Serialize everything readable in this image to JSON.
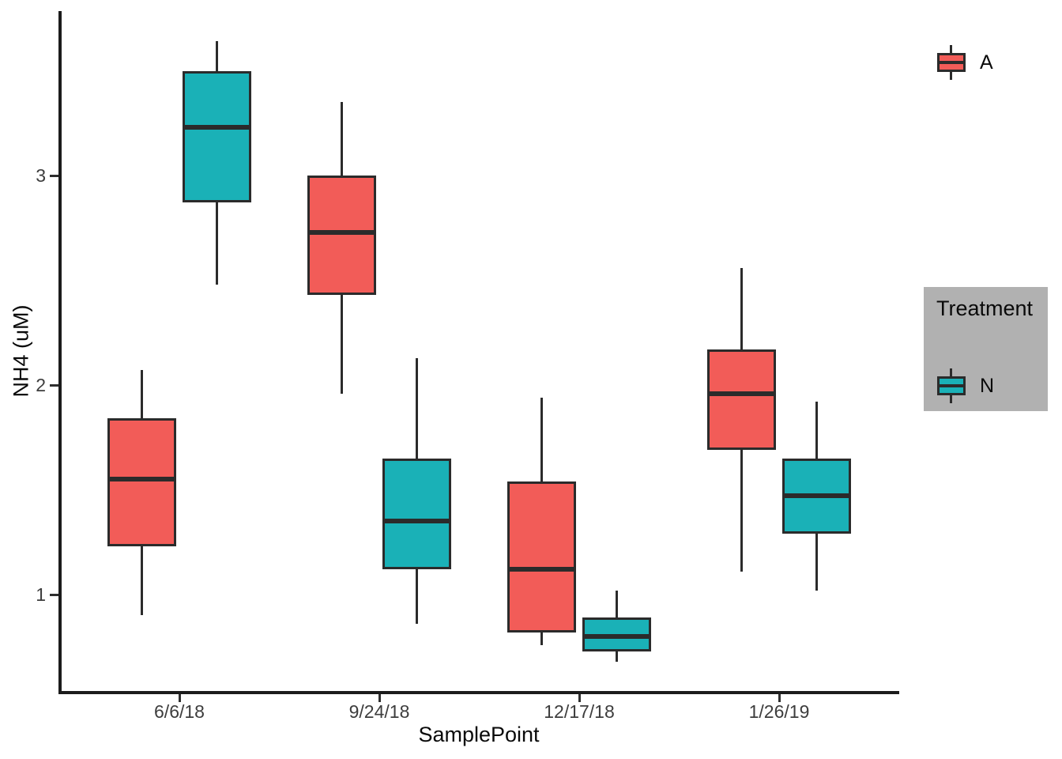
{
  "figure": {
    "x_axis_title": "SamplePoint",
    "y_axis_title": "NH4 (uM)",
    "legend": {
      "title": "Treatment"
    }
  },
  "colors": {
    "series_a_fill": "#F25C58",
    "series_n_fill": "#1AB1B7",
    "box_stroke": "#2B2B2B",
    "axis_line": "#1C1C1C",
    "tick_label": "#3D3D3D",
    "legend_background": "#B1B1B1",
    "plot_background": "#FFFFFF"
  },
  "chart_data": {
    "type": "boxplot",
    "title": "",
    "xlabel": "SamplePoint",
    "ylabel": "NH4 (uM)",
    "categories": [
      "6/6/18",
      "9/24/18",
      "12/17/18",
      "1/26/19"
    ],
    "y_ticks": [
      3,
      2,
      1
    ],
    "ylim": [
      0.55,
      3.78
    ],
    "grid": false,
    "legend_title": "Treatment",
    "legend_position": "right",
    "stroke_color": "#2B2B2B",
    "series": [
      {
        "name": "A",
        "color": "#F25C58",
        "boxes": [
          {
            "whisker_low": 0.9,
            "q1": 1.23,
            "median": 1.55,
            "q3": 1.84,
            "whisker_high": 2.07
          },
          {
            "whisker_low": 1.96,
            "q1": 2.43,
            "median": 2.73,
            "q3": 3.0,
            "whisker_high": 3.35
          },
          {
            "whisker_low": 0.76,
            "q1": 0.82,
            "median": 1.12,
            "q3": 1.54,
            "whisker_high": 1.94
          },
          {
            "whisker_low": 1.11,
            "q1": 1.69,
            "median": 1.96,
            "q3": 2.17,
            "whisker_high": 2.56
          }
        ]
      },
      {
        "name": "N",
        "color": "#1AB1B7",
        "boxes": [
          {
            "whisker_low": 2.48,
            "q1": 2.87,
            "median": 3.23,
            "q3": 3.5,
            "whisker_high": 3.64
          },
          {
            "whisker_low": 0.86,
            "q1": 1.12,
            "median": 1.35,
            "q3": 1.65,
            "whisker_high": 2.13
          },
          {
            "whisker_low": 0.68,
            "q1": 0.73,
            "median": 0.8,
            "q3": 0.89,
            "whisker_high": 1.02
          },
          {
            "whisker_low": 1.02,
            "q1": 1.29,
            "median": 1.47,
            "q3": 1.65,
            "whisker_high": 1.92
          }
        ]
      }
    ]
  }
}
